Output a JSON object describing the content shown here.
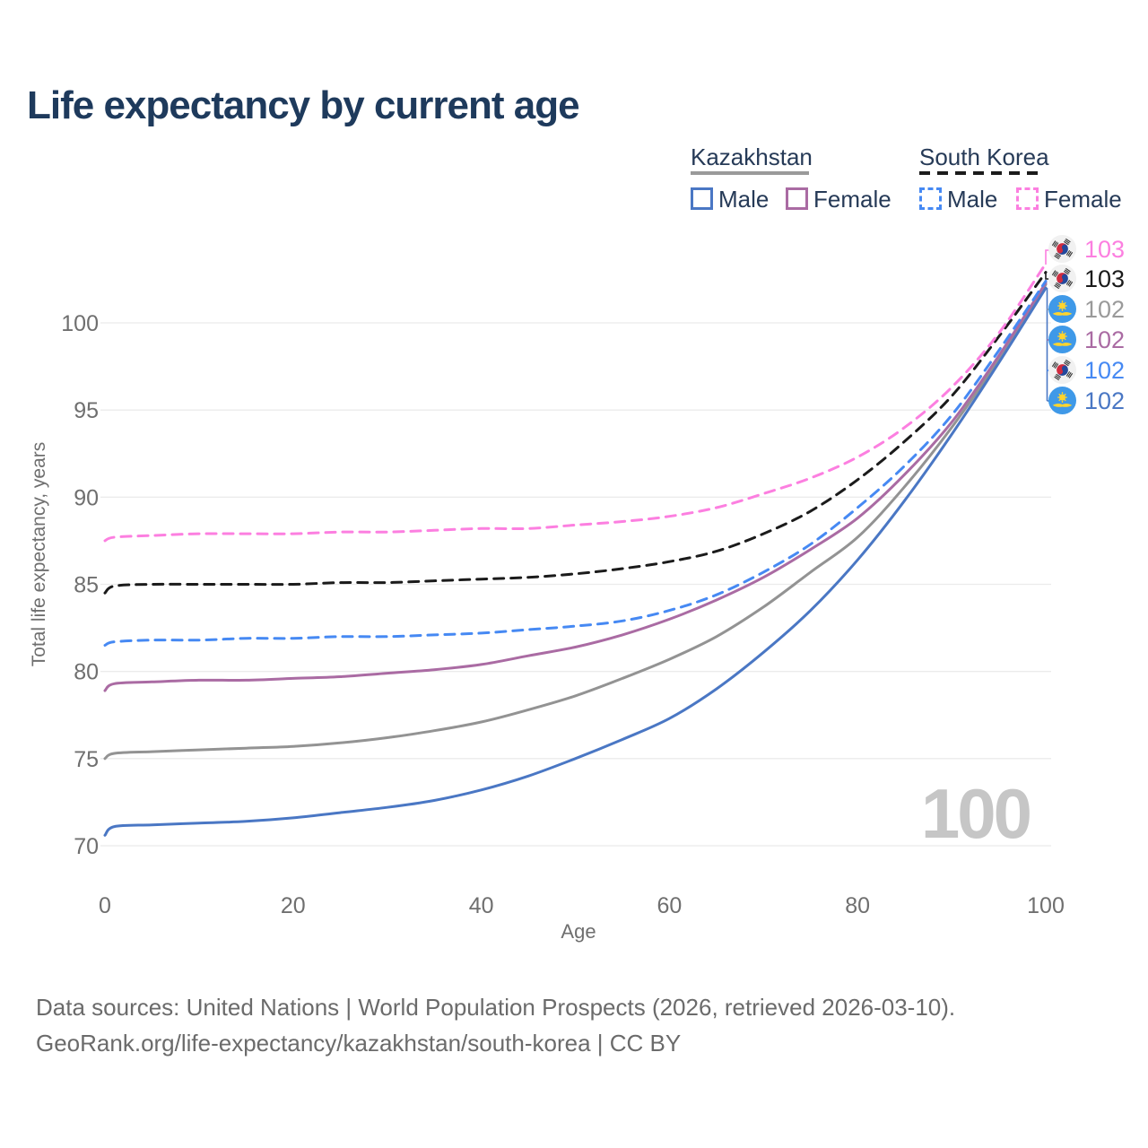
{
  "page": {
    "title": "Life expectancy by current age",
    "watermark_age": "100"
  },
  "legend": {
    "groups": [
      {
        "label": "Kazakhstan",
        "style": "solid",
        "color": "#9a9a9a",
        "items": [
          {
            "label": "Male",
            "color": "#4a77c4",
            "dash": false
          },
          {
            "label": "Female",
            "color": "#aa6ba3",
            "dash": false
          }
        ]
      },
      {
        "label": "South Korea",
        "style": "dashed",
        "color": "#1b1b1b",
        "items": [
          {
            "label": "Male",
            "color": "#4689f3",
            "dash": true
          },
          {
            "label": "Female",
            "color": "#fc7fe0",
            "dash": true
          }
        ]
      }
    ]
  },
  "chart_data": {
    "type": "line",
    "title": "Life expectancy by current age",
    "xlabel": "Age",
    "ylabel": "Total life expectancy, years",
    "xlim": [
      0,
      100
    ],
    "ylim": [
      70,
      103.5
    ],
    "xticks": [
      0,
      20,
      40,
      60,
      80,
      100
    ],
    "yticks": [
      70,
      75,
      80,
      85,
      90,
      95,
      100
    ],
    "grid": "horizontal",
    "legend_position": "top-right",
    "x": [
      0,
      1,
      5,
      10,
      15,
      20,
      25,
      30,
      35,
      40,
      45,
      50,
      55,
      60,
      65,
      70,
      75,
      80,
      85,
      90,
      95,
      100
    ],
    "series": [
      {
        "name": "Kazakhstan",
        "country": "Kazakhstan",
        "sex": "Both sexes",
        "line": "solid",
        "color": "#939393",
        "values": [
          75.0,
          75.3,
          75.4,
          75.5,
          75.6,
          75.7,
          75.9,
          76.2,
          76.6,
          77.1,
          77.8,
          78.6,
          79.6,
          80.7,
          82.0,
          83.7,
          85.7,
          87.7,
          90.6,
          94.0,
          97.9,
          102.2
        ],
        "end_label": "102"
      },
      {
        "name": "Kazakhstan Male",
        "country": "Kazakhstan",
        "sex": "Male",
        "line": "solid",
        "color": "#4a77c4",
        "values": [
          70.6,
          71.1,
          71.2,
          71.3,
          71.4,
          71.6,
          71.9,
          72.2,
          72.6,
          73.2,
          74.0,
          75.0,
          76.1,
          77.3,
          79.0,
          81.1,
          83.5,
          86.4,
          89.8,
          93.6,
          97.7,
          102.0
        ],
        "end_label": "102"
      },
      {
        "name": "Kazakhstan Female",
        "country": "Kazakhstan",
        "sex": "Female",
        "line": "solid",
        "color": "#aa6ba3",
        "values": [
          78.9,
          79.3,
          79.4,
          79.5,
          79.5,
          79.6,
          79.7,
          79.9,
          80.1,
          80.4,
          80.9,
          81.4,
          82.1,
          83.0,
          84.1,
          85.4,
          87.0,
          88.8,
          91.3,
          94.3,
          98.1,
          102.3
        ],
        "end_label": "102"
      },
      {
        "name": "South Korea",
        "country": "South Korea",
        "sex": "Both sexes",
        "line": "dashed",
        "color": "#1b1b1b",
        "values": [
          84.5,
          84.9,
          85.0,
          85.0,
          85.0,
          85.0,
          85.1,
          85.1,
          85.2,
          85.3,
          85.4,
          85.6,
          85.9,
          86.3,
          86.9,
          87.9,
          89.2,
          91.0,
          93.2,
          95.8,
          99.2,
          102.9
        ],
        "end_label": "103"
      },
      {
        "name": "South Korea Male",
        "country": "South Korea",
        "sex": "Male",
        "line": "dashed",
        "color": "#4689f3",
        "values": [
          81.5,
          81.7,
          81.8,
          81.8,
          81.9,
          81.9,
          82.0,
          82.0,
          82.1,
          82.2,
          82.4,
          82.6,
          82.9,
          83.5,
          84.4,
          85.7,
          87.3,
          89.4,
          91.8,
          94.7,
          98.4,
          102.4
        ],
        "end_label": "102"
      },
      {
        "name": "South Korea Female",
        "country": "South Korea",
        "sex": "Female",
        "line": "dashed",
        "color": "#fc7fe0",
        "values": [
          87.5,
          87.7,
          87.8,
          87.9,
          87.9,
          87.9,
          88.0,
          88.0,
          88.1,
          88.2,
          88.2,
          88.4,
          88.6,
          88.9,
          89.4,
          90.2,
          91.1,
          92.3,
          94.0,
          96.3,
          99.4,
          103.4
        ],
        "end_label": "103"
      }
    ]
  },
  "end_labels": [
    {
      "value": "103",
      "flag": "south-korea",
      "color": "#fc7fe0"
    },
    {
      "value": "103",
      "flag": "south-korea",
      "color": "#1b1b1b"
    },
    {
      "value": "102",
      "flag": "kazakhstan",
      "color": "#9a9a9a"
    },
    {
      "value": "102",
      "flag": "kazakhstan",
      "color": "#aa6ba3"
    },
    {
      "value": "102",
      "flag": "south-korea",
      "color": "#4689f3"
    },
    {
      "value": "102",
      "flag": "kazakhstan",
      "color": "#4a77c4"
    }
  ],
  "footer": {
    "line1": "Data sources: United Nations | World Population Prospects (2026, retrieved 2026-03-10).",
    "line2": "GeoRank.org/life-expectancy/kazakhstan/south-korea | CC BY"
  },
  "colors": {
    "title_text": "#1e3a5c",
    "axis_text": "#6f6f6f",
    "gridline": "#ebebeb",
    "watermark": "#c6c6c6",
    "footer_text": "#6b6b6b"
  }
}
